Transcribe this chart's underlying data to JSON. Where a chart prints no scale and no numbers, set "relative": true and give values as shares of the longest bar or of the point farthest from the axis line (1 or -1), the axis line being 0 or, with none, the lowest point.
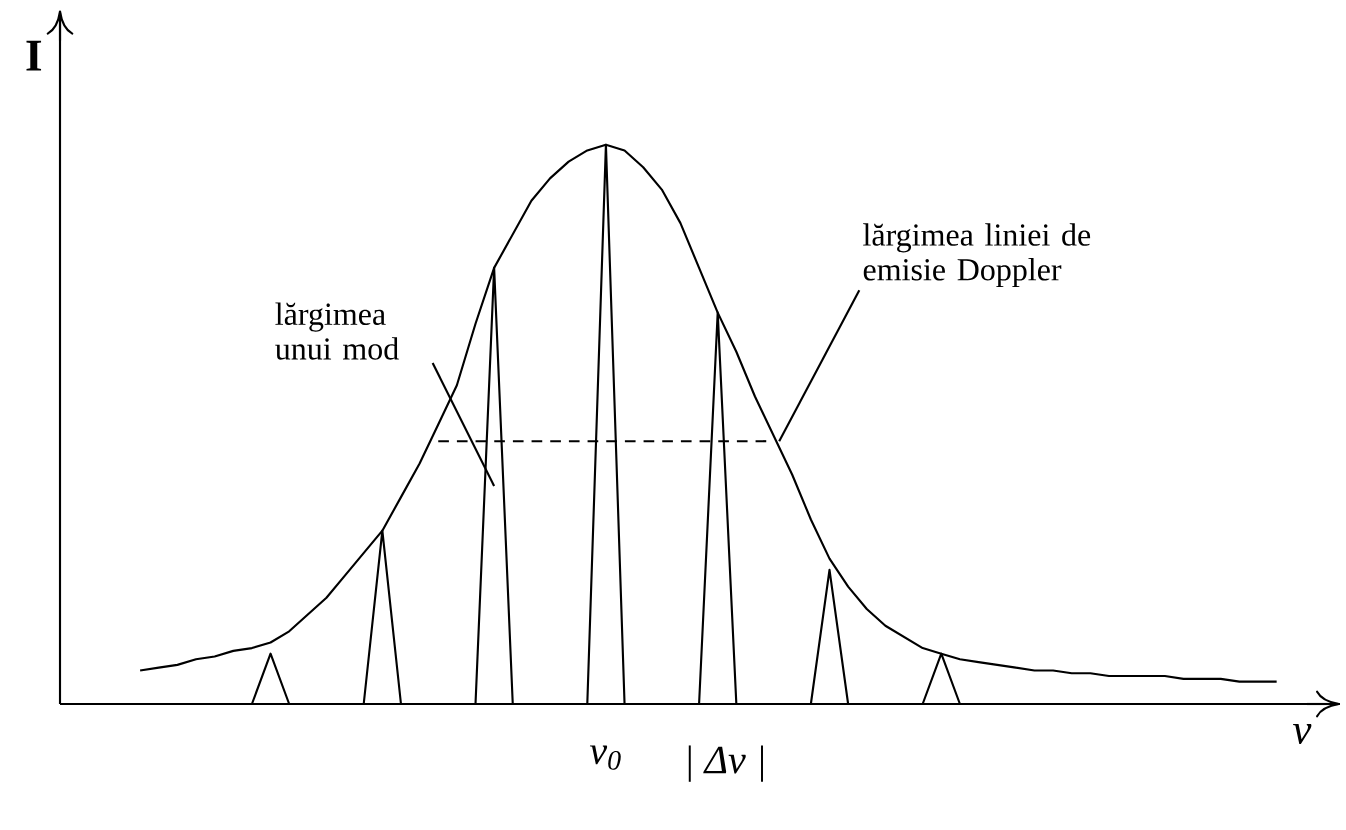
{
  "chart_data": {
    "type": "line",
    "relative": true,
    "xlabel": "ν",
    "ylabel": "I",
    "marker": "none",
    "categories": [
      null,
      null,
      null,
      null,
      null,
      null,
      null,
      null,
      null,
      null,
      null,
      null,
      null,
      null,
      null,
      null,
      null,
      null,
      null,
      null,
      null,
      null,
      null,
      null,
      null,
      null,
      null,
      null,
      null,
      null,
      null,
      null,
      null,
      null,
      null,
      null,
      null,
      null,
      null,
      null,
      null,
      null,
      null,
      null,
      null,
      null,
      null,
      null,
      null,
      null,
      null,
      null,
      null,
      null,
      null,
      null,
      null,
      null,
      null,
      null,
      null,
      null,
      null,
      null,
      null,
      null,
      null,
      null,
      null
    ],
    "series": [
      {
        "color": "#000000",
        "values": [
          null,
          null,
          null,
          null,
          0.06,
          0.065,
          0.07,
          0.08,
          0.085,
          0.095,
          0.1,
          0.11,
          0.13,
          0.16,
          0.19,
          0.23,
          0.27,
          0.31,
          0.37,
          0.43,
          0.5,
          0.57,
          0.68,
          0.78,
          0.84,
          0.9,
          0.94,
          0.97,
          0.99,
          1.0,
          0.99,
          0.96,
          0.92,
          0.86,
          0.78,
          0.7,
          0.63,
          0.55,
          0.48,
          0.41,
          0.33,
          0.26,
          0.21,
          0.17,
          0.14,
          0.12,
          0.1,
          0.09,
          0.08,
          0.075,
          0.07,
          0.065,
          0.06,
          0.06,
          0.055,
          0.055,
          0.05,
          0.05,
          0.05,
          0.05,
          0.045,
          0.045,
          0.045,
          0.04,
          0.04,
          0.04,
          null,
          null,
          null
        ]
      },
      {
        "color": "#000000",
        "values": [
          null,
          null,
          null,
          null,
          null,
          null,
          null,
          null,
          null,
          null,
          0,
          0.09,
          0,
          0,
          0,
          0,
          0,
          0.31,
          0,
          0,
          0,
          0,
          0,
          0.78,
          0,
          0,
          0,
          0,
          0,
          1.0,
          0,
          0,
          0,
          0,
          0,
          0.7,
          0,
          0,
          0,
          0,
          0,
          0.24,
          0,
          0,
          0,
          0,
          0,
          0.09,
          0,
          null,
          null,
          null,
          null,
          null,
          null,
          null,
          null,
          null,
          null,
          null,
          null,
          null,
          null,
          null,
          null,
          null,
          null,
          null,
          null
        ]
      },
      {
        "color": "#000000",
        "line_style": "dashed",
        "values": [
          null,
          null,
          null,
          null,
          null,
          null,
          null,
          null,
          null,
          null,
          null,
          null,
          null,
          null,
          null,
          null,
          null,
          null,
          null,
          null,
          0.47,
          0.47,
          0.47,
          0.47,
          0.47,
          0.47,
          0.47,
          0.47,
          0.47,
          0.47,
          0.47,
          0.47,
          0.47,
          0.47,
          0.47,
          0.47,
          0.47,
          0.47,
          0.47,
          null,
          null,
          null,
          null,
          null,
          null,
          null,
          null,
          null,
          null,
          null,
          null,
          null,
          null,
          null,
          null,
          null,
          null,
          null,
          null,
          null,
          null,
          null,
          null,
          null,
          null,
          null,
          null,
          null,
          null
        ]
      }
    ],
    "annotations": [
      "lărgimea unui mod",
      "lărgimea liniei de emisie Doppler",
      "ν$_{0}$",
      "| Δν |"
    ]
  }
}
